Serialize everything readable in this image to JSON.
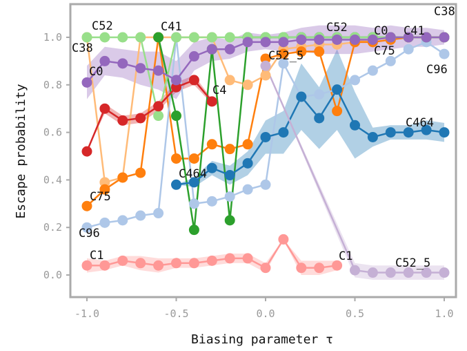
{
  "chart_data": {
    "type": "line",
    "title": "",
    "xlabel": "Biasing parameter τ",
    "ylabel": "Escape probability",
    "xlim": [
      -1.05,
      1.05
    ],
    "ylim": [
      -0.1,
      1.15
    ],
    "xticks": [
      "-1.0",
      "-0.5",
      "0.0",
      "0.5",
      "1.0"
    ],
    "yticks": [
      "0.0",
      "0.2",
      "0.4",
      "0.6",
      "0.8",
      "1.0"
    ],
    "grid": false,
    "legend": "none (series labeled inline)",
    "series": [
      {
        "name": "C38",
        "color": "#ffbb78",
        "x": [
          -1.0,
          -0.9,
          -0.8,
          -0.7,
          -0.6,
          -0.5,
          -0.4,
          -0.3,
          -0.2,
          -0.1,
          0.0,
          0.1,
          0.2,
          0.3,
          0.4,
          0.5,
          0.6,
          0.7,
          0.8,
          0.9,
          1.0
        ],
        "y": [
          1.0,
          0.39,
          0.41,
          1.0,
          1.0,
          1.0,
          1.0,
          1.0,
          0.82,
          0.8,
          0.84,
          0.95,
          0.96,
          0.97,
          0.97,
          0.98,
          0.99,
          1.0,
          1.0,
          1.0,
          1.0
        ],
        "band": [
          0.0,
          0.0,
          0.0,
          0.0,
          0.0,
          0.0,
          0.0,
          0.0,
          0.0,
          0.0,
          0.0,
          0.0,
          0.0,
          0.0,
          0.0,
          0.0,
          0.0,
          0.0,
          0.0,
          0.0,
          0.0
        ]
      },
      {
        "name": "C75",
        "color": "#ff7f0e",
        "x": [
          -1.0,
          -0.9,
          -0.8,
          -0.7,
          -0.6,
          -0.5,
          -0.4,
          -0.3,
          -0.2,
          -0.1,
          0.0,
          0.1,
          0.2,
          0.3,
          0.4,
          0.5,
          0.6,
          0.7,
          0.8,
          0.9,
          1.0
        ],
        "y": [
          0.29,
          0.36,
          0.41,
          0.43,
          1.0,
          0.49,
          0.49,
          0.55,
          0.53,
          0.55,
          0.91,
          0.93,
          0.94,
          0.94,
          0.69,
          0.98,
          0.98,
          0.99,
          1.0,
          1.0,
          1.0
        ],
        "band": [
          0.0,
          0.0,
          0.0,
          0.0,
          0.0,
          0.0,
          0.0,
          0.0,
          0.0,
          0.0,
          0.0,
          0.0,
          0.0,
          0.0,
          0.0,
          0.0,
          0.0,
          0.0,
          0.0,
          0.0,
          0.0
        ]
      },
      {
        "name": "C96",
        "color": "#aec7e8",
        "x": [
          -1.0,
          -0.9,
          -0.8,
          -0.7,
          -0.6,
          -0.5,
          -0.4,
          -0.3,
          -0.2,
          -0.1,
          0.0,
          0.1,
          0.2,
          0.3,
          0.4,
          0.5,
          0.6,
          0.7,
          0.8,
          0.9,
          1.0
        ],
        "y": [
          0.2,
          0.22,
          0.23,
          0.25,
          0.26,
          1.0,
          0.3,
          0.31,
          0.33,
          0.36,
          0.38,
          0.89,
          0.75,
          0.76,
          0.78,
          0.82,
          0.86,
          0.9,
          0.95,
          0.98,
          0.93
        ],
        "band": [
          0.0,
          0.0,
          0.0,
          0.0,
          0.0,
          0.0,
          0.0,
          0.0,
          0.0,
          0.0,
          0.0,
          0.0,
          0.0,
          0.0,
          0.0,
          0.0,
          0.0,
          0.0,
          0.0,
          0.0,
          0.0
        ]
      },
      {
        "name": "C41",
        "color": "#2ca02c",
        "x": [
          -0.6,
          -0.5,
          -0.4,
          -0.3,
          -0.2,
          -0.1,
          0.0,
          0.1,
          0.2,
          0.3,
          0.4,
          0.5,
          0.6,
          0.7,
          0.8,
          0.9,
          1.0
        ],
        "y": [
          1.0,
          0.67,
          0.19,
          0.95,
          0.23,
          1.0,
          1.0,
          1.0,
          1.0,
          1.0,
          1.0,
          1.0,
          1.0,
          1.0,
          1.0,
          1.0,
          1.0
        ],
        "band": [
          0.0,
          0.0,
          0.0,
          0.0,
          0.0,
          0.0,
          0.0,
          0.0,
          0.0,
          0.0,
          0.0,
          0.0,
          0.0,
          0.0,
          0.0,
          0.0,
          0.0
        ]
      },
      {
        "name": "C52",
        "color": "#98df8a",
        "x": [
          -1.0,
          -0.9,
          -0.8,
          -0.7,
          -0.6,
          -0.5,
          -0.4,
          -0.3,
          -0.2,
          -0.1,
          0.0,
          0.1,
          0.2,
          0.3,
          0.4,
          0.5,
          0.6,
          0.7,
          0.8,
          0.9,
          1.0
        ],
        "y": [
          1.0,
          1.0,
          1.0,
          1.0,
          0.67,
          1.0,
          1.0,
          1.0,
          1.0,
          1.0,
          1.0,
          1.0,
          1.0,
          1.0,
          1.0,
          1.0,
          1.0,
          1.0,
          1.0,
          1.0,
          1.0
        ],
        "band": [
          0.0,
          0.0,
          0.0,
          0.0,
          0.0,
          0.0,
          0.0,
          0.0,
          0.0,
          0.0,
          0.0,
          0.0,
          0.0,
          0.0,
          0.0,
          0.0,
          0.0,
          0.0,
          0.0,
          0.0,
          0.0
        ]
      },
      {
        "name": "C464",
        "color": "#1f77b4",
        "x": [
          -0.5,
          -0.4,
          -0.3,
          -0.2,
          -0.1,
          0.0,
          0.1,
          0.2,
          0.3,
          0.4,
          0.5,
          0.6,
          0.7,
          0.8,
          0.9,
          1.0
        ],
        "y": [
          0.38,
          0.39,
          0.45,
          0.42,
          0.47,
          0.58,
          0.6,
          0.75,
          0.66,
          0.78,
          0.63,
          0.58,
          0.6,
          0.6,
          0.61,
          0.6
        ],
        "band": [
          0.0,
          0.02,
          0.03,
          0.04,
          0.05,
          0.07,
          0.09,
          0.14,
          0.13,
          0.17,
          0.14,
          0.04,
          0.03,
          0.03,
          0.04,
          0.04
        ]
      },
      {
        "name": "C4",
        "color": "#d62728",
        "x": [
          -1.0,
          -0.9,
          -0.8,
          -0.7,
          -0.6,
          -0.5,
          -0.4,
          -0.3
        ],
        "y": [
          0.52,
          0.7,
          0.65,
          0.66,
          0.71,
          0.79,
          0.82,
          0.73
        ],
        "band": [
          0.0,
          0.02,
          0.02,
          0.02,
          0.02,
          0.02,
          0.02,
          0.01
        ]
      },
      {
        "name": "C1",
        "color": "#ff9896",
        "x": [
          -1.0,
          -0.9,
          -0.8,
          -0.7,
          -0.6,
          -0.5,
          -0.4,
          -0.3,
          -0.2,
          -0.1,
          0.0,
          0.1,
          0.2,
          0.3,
          0.4
        ],
        "y": [
          0.04,
          0.04,
          0.06,
          0.05,
          0.04,
          0.05,
          0.05,
          0.06,
          0.07,
          0.07,
          0.03,
          0.15,
          0.03,
          0.03,
          0.04
        ],
        "band": [
          0.03,
          0.02,
          0.02,
          0.03,
          0.03,
          0.02,
          0.02,
          0.02,
          0.02,
          0.02,
          0.02,
          0.0,
          0.03,
          0.03,
          0.02
        ]
      },
      {
        "name": "C52_5",
        "color": "#c5b0d5",
        "x": [
          0.0,
          0.5,
          0.6,
          0.7,
          0.8,
          0.9,
          1.0
        ],
        "y": [
          0.88,
          0.02,
          0.01,
          0.01,
          0.01,
          0.01,
          0.01
        ],
        "band": [
          0.0,
          0.03,
          0.03,
          0.03,
          0.03,
          0.03,
          0.03
        ]
      },
      {
        "name": "C0",
        "color": "#9467bd",
        "x": [
          -1.0,
          -0.9,
          -0.8,
          -0.7,
          -0.6,
          -0.5,
          -0.4,
          -0.3,
          -0.2,
          -0.1,
          0.0,
          0.1,
          0.2,
          0.3,
          0.4,
          0.5,
          0.6,
          0.7,
          0.8,
          0.9,
          1.0
        ],
        "y": [
          0.81,
          0.9,
          0.89,
          0.87,
          0.86,
          0.82,
          0.92,
          0.95,
          0.95,
          0.98,
          0.98,
          0.98,
          0.99,
          0.99,
          0.99,
          0.99,
          0.99,
          1.0,
          1.0,
          1.0,
          1.0
        ],
        "band": [
          0.07,
          0.06,
          0.06,
          0.07,
          0.08,
          0.08,
          0.06,
          0.05,
          0.04,
          0.04,
          0.03,
          0.04,
          0.05,
          0.06,
          0.06,
          0.06,
          0.05,
          0.05,
          0.04,
          0.04,
          0.03
        ]
      }
    ],
    "inline_labels": [
      "C38",
      "C52",
      "C41",
      "C38",
      "C0",
      "C4",
      "C75",
      "C96",
      "C1",
      "C464",
      "C52_5",
      "C52",
      "C0",
      "C41",
      "C75",
      "C96",
      "C1",
      "C464",
      "C52_5"
    ]
  }
}
